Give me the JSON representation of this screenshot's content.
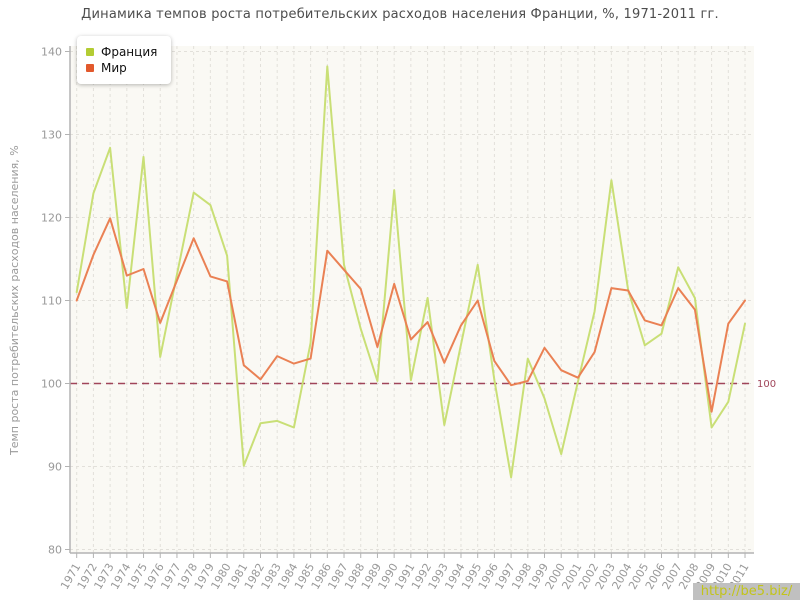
{
  "title": "Динамика темпов роста потребительских расходов населения Франции, %, 1971-2011 гг.",
  "y_axis": {
    "title": "Темп роста потребительских расходов населения, %",
    "ticks": [
      140,
      130,
      120,
      110,
      100,
      90,
      80
    ]
  },
  "threshold": {
    "value": 100,
    "label": "100",
    "color": "#a0455a"
  },
  "watermark": {
    "text": "http://be5.biz/"
  },
  "colors": {
    "plot_background": "#faf9f4",
    "grid": "#e2e0da",
    "axis": "#b3b3b3",
    "tick_label": "#999999",
    "title_text": "#4d4d4d",
    "threshold_line": "#a0455a",
    "france_line": "#c9df76",
    "france_marker": "#b3cc33",
    "world_line": "#ea8154",
    "world_marker": "#e2592c"
  },
  "chart_data": {
    "type": "line",
    "title": "Динамика темпов роста потребительских расходов населения Франции, %, 1971-2011 гг.",
    "xlabel": "",
    "ylabel": "Темп роста потребительских расходов населения, %",
    "ylim": [
      80,
      140
    ],
    "grid": true,
    "legend_position": "top-left",
    "threshold_line": 100,
    "x": [
      1971,
      1972,
      1973,
      1974,
      1975,
      1976,
      1977,
      1978,
      1979,
      1980,
      1981,
      1982,
      1983,
      1984,
      1985,
      1986,
      1987,
      1988,
      1989,
      1990,
      1991,
      1992,
      1993,
      1994,
      1995,
      1996,
      1997,
      1998,
      1999,
      2000,
      2001,
      2002,
      2003,
      2004,
      2005,
      2006,
      2007,
      2008,
      2009,
      2010,
      2011
    ],
    "series": [
      {
        "name": "Франция",
        "line_color": "#c9df76",
        "marker_color": "#b3cc33",
        "values": [
          111.0,
          122.9,
          128.4,
          109.1,
          127.3,
          103.2,
          113.1,
          123.0,
          121.5,
          115.4,
          90.1,
          95.2,
          95.5,
          94.7,
          104.9,
          138.2,
          114.3,
          106.6,
          100.3,
          123.3,
          100.4,
          110.3,
          95.0,
          104.7,
          114.3,
          100.4,
          88.7,
          103.0,
          98.2,
          91.5,
          100.2,
          108.7,
          124.5,
          111.3,
          104.6,
          106.0,
          114.0,
          110.3,
          94.7,
          97.8,
          107.2
        ]
      },
      {
        "name": "Мир",
        "line_color": "#ea8154",
        "marker_color": "#e2592c",
        "values": [
          110.0,
          115.5,
          119.9,
          113.0,
          113.8,
          107.3,
          112.4,
          117.5,
          112.9,
          112.3,
          102.2,
          100.5,
          103.3,
          102.4,
          103.0,
          116.0,
          113.7,
          111.4,
          104.4,
          112.0,
          105.3,
          107.4,
          102.5,
          107.0,
          110.0,
          102.7,
          99.8,
          100.3,
          104.3,
          101.6,
          100.7,
          103.8,
          111.5,
          111.2,
          107.6,
          107.0,
          111.5,
          108.9,
          96.6,
          107.2,
          110.0
        ]
      }
    ]
  }
}
